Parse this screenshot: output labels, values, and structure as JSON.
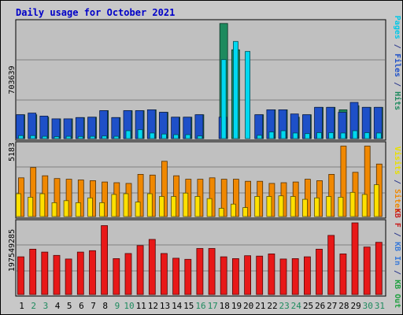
{
  "chart_data": {
    "type": "bar",
    "title": "Daily usage for October 2021",
    "categories": [
      "1",
      "2",
      "3",
      "4",
      "5",
      "6",
      "7",
      "8",
      "9",
      "10",
      "11",
      "12",
      "13",
      "14",
      "15",
      "16",
      "17",
      "18",
      "19",
      "20",
      "21",
      "22",
      "23",
      "24",
      "25",
      "26",
      "27",
      "28",
      "29",
      "30",
      "31"
    ],
    "weekend_days": [
      "2",
      "3",
      "9",
      "10",
      "16",
      "17",
      "23",
      "24",
      "30",
      "31"
    ],
    "panels": [
      {
        "id": "pages-files-hits",
        "ymax_label": "703639",
        "ylim": [
          0,
          703639
        ],
        "side_labels": [
          {
            "text": "Pages",
            "color": "#00c8e8"
          },
          {
            "text": " / ",
            "color": "#2e3a8c"
          },
          {
            "text": "Files",
            "color": "#1e50c8"
          },
          {
            "text": " / ",
            "color": "#2e3a8c"
          },
          {
            "text": "Hits",
            "color": "#1e8a5e"
          }
        ],
        "series": [
          {
            "name": "Hits",
            "color": "#1e8a5e",
            "values": [
              145000,
              145000,
              130000,
              120000,
              120000,
              128000,
              130000,
              170000,
              128000,
              170000,
              170000,
              175000,
              160000,
              130000,
              130000,
              145000,
              1000,
              700000,
              540000,
              1000,
              145000,
              175000,
              175000,
              130000,
              145000,
              190000,
              190000,
              175000,
              200000,
              190000,
              190000
            ]
          },
          {
            "name": "Files",
            "color": "#1e50c8",
            "values": [
              145000,
              155000,
              137000,
              120000,
              120000,
              128000,
              130000,
              170000,
              128000,
              170000,
              170000,
              175000,
              160000,
              130000,
              130000,
              145000,
              1000,
              130000,
              1000,
              1000,
              145000,
              175000,
              175000,
              150000,
              145000,
              190000,
              190000,
              160000,
              220000,
              190000,
              190000
            ]
          },
          {
            "name": "Pages",
            "color": "#00d8f0",
            "values": [
              18000,
              18000,
              14000,
              12000,
              14000,
              13000,
              14000,
              16000,
              14000,
              48000,
              54000,
              34000,
              28000,
              24000,
              24000,
              16000,
              1000,
              480000,
              590000,
              530000,
              20000,
              40000,
              48000,
              34000,
              30000,
              36000,
              36000,
              34000,
              48000,
              36000,
              34000
            ]
          }
        ]
      },
      {
        "id": "visits-sites",
        "ymax_label": "5183",
        "ylim": [
          0,
          5183
        ],
        "side_labels": [
          {
            "text": "Visits",
            "color": "#e8e000"
          },
          {
            "text": " / ",
            "color": "#2e3a8c"
          },
          {
            "text": "Sites",
            "color": "#f08800"
          }
        ],
        "series": [
          {
            "name": "Sites",
            "color": "#f08800",
            "values": [
              2800,
              3550,
              2950,
              2750,
              2700,
              2650,
              2600,
              2500,
              2450,
              2400,
              3050,
              3000,
              4000,
              2950,
              2700,
              2700,
              2800,
              2700,
              2700,
              2550,
              2550,
              2400,
              2450,
              2500,
              2700,
              2600,
              3050,
              5100,
              3200,
              5100,
              3800
            ]
          },
          {
            "name": "Visits",
            "color": "#ffe000",
            "values": [
              1650,
              1400,
              1650,
              1000,
              1150,
              1000,
              1350,
              1000,
              1600,
              1650,
              1050,
              1650,
              1450,
              1450,
              1700,
              1450,
              1300,
              600,
              900,
              650,
              1450,
              1450,
              1500,
              1450,
              1250,
              1350,
              1450,
              1400,
              1750,
              1600,
              2300
            ]
          }
        ]
      },
      {
        "id": "kb-in-out",
        "ymax_label": "197549285",
        "ylim": [
          0,
          197549285
        ],
        "side_labels": [
          {
            "text": "KB F",
            "color": "#c82020"
          },
          {
            "text": " / ",
            "color": "#2e3a8c"
          },
          {
            "text": "KB In",
            "color": "#3a7ad8"
          },
          {
            "text": " / ",
            "color": "#2e3a8c"
          },
          {
            "text": "KB Out",
            "color": "#20a040"
          }
        ],
        "series": [
          {
            "name": "KB F",
            "color": "#e81818",
            "values": [
              104000000,
              125000000,
              117000000,
              108000000,
              98000000,
              117000000,
              121000000,
              190000000,
              99000000,
              113000000,
              135000000,
              152000000,
              113000000,
              100000000,
              97000000,
              127000000,
              127000000,
              104000000,
              99000000,
              107000000,
              106000000,
              112000000,
              98000000,
              99000000,
              104000000,
              125000000,
              163000000,
              112000000,
              200000000,
              131000000,
              144000000
            ]
          }
        ]
      }
    ]
  }
}
